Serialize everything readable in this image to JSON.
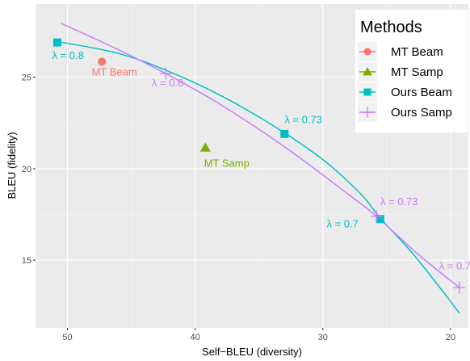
{
  "chart_data": {
    "type": "scatter",
    "xlabel": "Self−BLEU (diversity)",
    "ylabel": "BLEU (fidelity)",
    "x_reversed": true,
    "xlim": [
      52.5,
      18.6
    ],
    "ylim": [
      11.3,
      29.0
    ],
    "x_ticks": [
      50,
      40,
      30,
      20
    ],
    "y_ticks": [
      15,
      20,
      25
    ],
    "grid": true,
    "legend": {
      "title": "Methods",
      "position": "top-right",
      "entries": [
        {
          "label": "MT Beam",
          "color": "#F8766D",
          "shape": "circle",
          "line": true
        },
        {
          "label": "MT Samp",
          "color": "#7CAE00",
          "shape": "triangle",
          "line": true
        },
        {
          "label": "Ours Beam",
          "color": "#00BFC4",
          "shape": "square",
          "line": true
        },
        {
          "label": "Ours Samp",
          "color": "#C77CFF",
          "shape": "plus",
          "line": true
        }
      ]
    },
    "series": [
      {
        "name": "MT Beam",
        "color": "#F8766D",
        "shape": "circle",
        "points": [
          {
            "x": 47.3,
            "y": 25.85
          }
        ]
      },
      {
        "name": "MT Samp",
        "color": "#7CAE00",
        "shape": "triangle",
        "points": [
          {
            "x": 39.2,
            "y": 21.15
          }
        ]
      },
      {
        "name": "Ours Beam",
        "color": "#00BFC4",
        "shape": "square",
        "points": [
          {
            "x": 50.8,
            "y": 26.9
          },
          {
            "x": 33.0,
            "y": 21.9
          },
          {
            "x": 25.5,
            "y": 17.25
          }
        ],
        "curve": [
          [
            50.8,
            26.95
          ],
          [
            46.0,
            26.3
          ],
          [
            42.0,
            25.3
          ],
          [
            38.0,
            24.0
          ],
          [
            34.0,
            22.4
          ],
          [
            30.0,
            20.5
          ],
          [
            27.0,
            18.6
          ],
          [
            25.5,
            17.3
          ],
          [
            23.0,
            15.4
          ],
          [
            20.5,
            13.2
          ],
          [
            19.3,
            12.1
          ]
        ]
      },
      {
        "name": "Ours Samp",
        "color": "#C77CFF",
        "shape": "plus",
        "points": [
          {
            "x": 42.3,
            "y": 25.2
          },
          {
            "x": 25.8,
            "y": 17.4
          },
          {
            "x": 19.3,
            "y": 13.5
          }
        ],
        "curve": [
          [
            50.5,
            27.95
          ],
          [
            46.0,
            26.5
          ],
          [
            42.3,
            25.2
          ],
          [
            38.0,
            23.5
          ],
          [
            33.0,
            21.2
          ],
          [
            28.0,
            18.6
          ],
          [
            25.8,
            17.4
          ],
          [
            22.5,
            15.3
          ],
          [
            19.3,
            13.5
          ]
        ]
      }
    ],
    "annotations": [
      {
        "text": "λ = 0.8",
        "x": 51.2,
        "y": 26.0,
        "color": "#00BFC4",
        "anchor": "start"
      },
      {
        "text": "MT Beam",
        "x": 48.1,
        "y": 25.1,
        "color": "#F8766D",
        "anchor": "start"
      },
      {
        "text": "λ = 0.8",
        "x": 43.4,
        "y": 24.5,
        "color": "#C77CFF",
        "anchor": "start"
      },
      {
        "text": "MT Samp",
        "x": 39.3,
        "y": 20.1,
        "color": "#7CAE00",
        "anchor": "start"
      },
      {
        "text": "λ = 0.73",
        "x": 33.0,
        "y": 22.5,
        "color": "#00BFC4",
        "anchor": "start"
      },
      {
        "text": "λ = 0.7",
        "x": 29.7,
        "y": 16.8,
        "color": "#00BFC4",
        "anchor": "start"
      },
      {
        "text": "λ = 0.73",
        "x": 25.5,
        "y": 18.0,
        "color": "#C77CFF",
        "anchor": "start"
      },
      {
        "text": "λ = 0.7",
        "x": 20.9,
        "y": 14.5,
        "color": "#C77CFF",
        "anchor": "start"
      }
    ]
  }
}
